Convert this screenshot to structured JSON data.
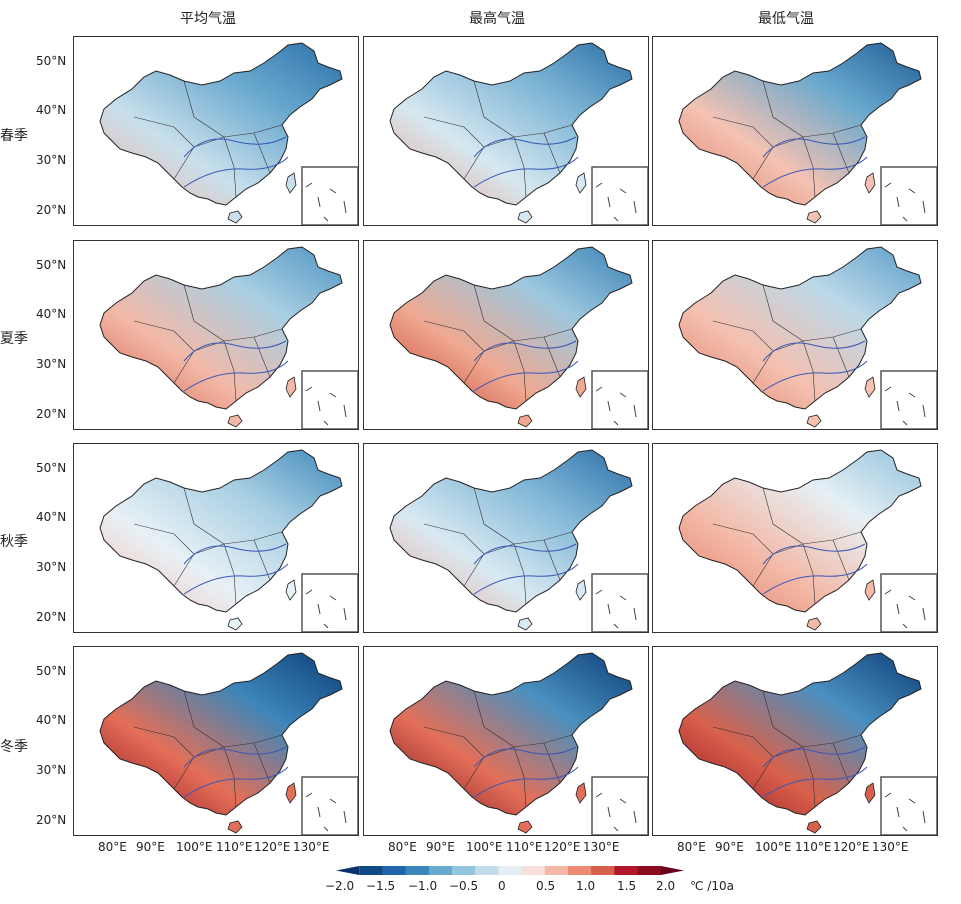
{
  "figure": {
    "column_titles": [
      "平均气温",
      "最高气温",
      "最低气温"
    ],
    "row_labels": [
      "春季",
      "夏季",
      "秋季",
      "冬季"
    ],
    "lat_ticks": [
      "50°N",
      "40°N",
      "30°N",
      "20°N"
    ],
    "lon_ticks": [
      "80°E",
      "90°E",
      "100°E",
      "110°E",
      "120°E",
      "130°E"
    ]
  },
  "colorbar": {
    "ticks": [
      "−2.0",
      "−1.5",
      "−1.0",
      "−0.5",
      "0",
      "0.5",
      "1.0",
      "1.5",
      "2.0"
    ],
    "unit": "℃ /10a",
    "colors": [
      "#08306b",
      "#0f4a84",
      "#2166ac",
      "#3b86ba",
      "#67a9cf",
      "#92c5de",
      "#c3dcea",
      "#e4eef4",
      "#f7e0dc",
      "#f4b7a8",
      "#ec8b73",
      "#d6604d",
      "#b2182b",
      "#8b0d1f",
      "#67001f"
    ]
  },
  "panels": [
    {
      "season": "春季",
      "variable": "平均气温",
      "tint": [
        "#2a6fa8",
        "#6aa9cf",
        "#c9e0ec",
        "#f0b2a0"
      ]
    },
    {
      "season": "春季",
      "variable": "最高气温",
      "tint": [
        "#2a6fa8",
        "#7fb6d6",
        "#d6e8f1",
        "#eaa08b"
      ]
    },
    {
      "season": "春季",
      "variable": "最低气温",
      "tint": [
        "#1e5c94",
        "#6aa9cf",
        "#f4c2b3",
        "#e07b63"
      ]
    },
    {
      "season": "夏季",
      "variable": "平均气温",
      "tint": [
        "#4f94c2",
        "#a9cfe3",
        "#f2b9a8",
        "#d9614b"
      ]
    },
    {
      "season": "夏季",
      "variable": "最高气温",
      "tint": [
        "#3a82b6",
        "#9cc7df",
        "#f0a890",
        "#c23b2e"
      ]
    },
    {
      "season": "夏季",
      "variable": "最低气温",
      "tint": [
        "#5a9cc8",
        "#bad8e8",
        "#f4c0b0",
        "#e07b63"
      ]
    },
    {
      "season": "秋季",
      "variable": "平均气温",
      "tint": [
        "#3f88ba",
        "#a7cee3",
        "#e8f1f6",
        "#f3bcae"
      ]
    },
    {
      "season": "秋季",
      "variable": "最高气温",
      "tint": [
        "#2a6fa8",
        "#82b8d8",
        "#d8e9f2",
        "#f0a994"
      ]
    },
    {
      "season": "秋季",
      "variable": "最低气温",
      "tint": [
        "#8fc1dc",
        "#e6f0f5",
        "#f3b8a6",
        "#e07b63"
      ]
    },
    {
      "season": "冬季",
      "variable": "平均气温",
      "tint": [
        "#0d3f78",
        "#3b86ba",
        "#e46f58",
        "#8b0d1f"
      ]
    },
    {
      "season": "冬季",
      "variable": "最高气温",
      "tint": [
        "#0d3f78",
        "#4a90c0",
        "#e46f58",
        "#7a0c1c"
      ]
    },
    {
      "season": "冬季",
      "variable": "最低气温",
      "tint": [
        "#0d3f78",
        "#4a90c0",
        "#d9614b",
        "#8b0d1f"
      ]
    }
  ]
}
